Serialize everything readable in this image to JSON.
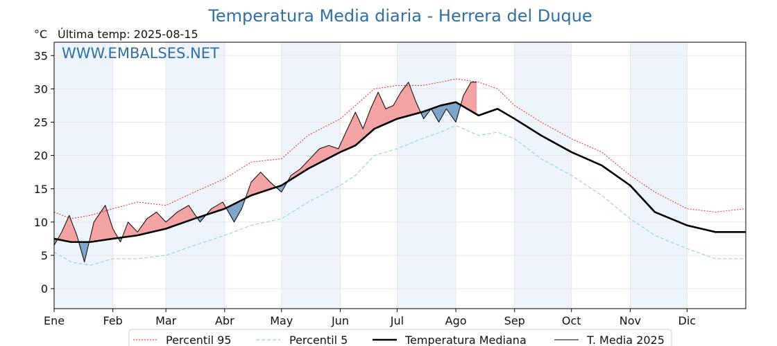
{
  "title": "Temperatura Media diaria - Herrera del Duque",
  "unit_label": "°C",
  "last_temp_label": "Última temp: 2025-08-15",
  "watermark": "WWW.EMBALSES.NET",
  "colors": {
    "title": "#2f6fa3",
    "watermark": "#2f6fa3",
    "p95": "#e8251d",
    "p5": "#9ccfdc",
    "median": "#000000",
    "current": "#000000",
    "above_fill": "#f4a3a5",
    "below_fill": "#7fa5c8",
    "band": "#eef4fb",
    "grid": "#e6e6e6"
  },
  "chart_data": {
    "type": "line",
    "xlim": [
      1,
      366
    ],
    "ylim": [
      -3,
      37
    ],
    "y_ticks": [
      0,
      5,
      10,
      15,
      20,
      25,
      30,
      35
    ],
    "x_ticks": [
      {
        "day": 1,
        "label": "Ene"
      },
      {
        "day": 32,
        "label": "Feb"
      },
      {
        "day": 60,
        "label": "Mar"
      },
      {
        "day": 91,
        "label": "Abr"
      },
      {
        "day": 121,
        "label": "May"
      },
      {
        "day": 152,
        "label": "Jun"
      },
      {
        "day": 182,
        "label": "Jul"
      },
      {
        "day": 213,
        "label": "Ago"
      },
      {
        "day": 244,
        "label": "Sep"
      },
      {
        "day": 274,
        "label": "Oct"
      },
      {
        "day": 305,
        "label": "Nov"
      },
      {
        "day": 335,
        "label": "Dic"
      }
    ],
    "shaded_months": [
      [
        1,
        32
      ],
      [
        60,
        91
      ],
      [
        121,
        152
      ],
      [
        182,
        213
      ],
      [
        244,
        274
      ],
      [
        305,
        335
      ]
    ],
    "legend": [
      "Percentil 95",
      "Percentil 5",
      "Temperatura Mediana",
      "T. Media 2025"
    ],
    "series": [
      {
        "name": "Percentil 95",
        "style": "dotted-red",
        "points": [
          [
            1,
            11.5
          ],
          [
            10,
            10.5
          ],
          [
            20,
            11
          ],
          [
            32,
            12
          ],
          [
            45,
            13
          ],
          [
            60,
            12.5
          ],
          [
            75,
            14.5
          ],
          [
            91,
            16.5
          ],
          [
            105,
            19
          ],
          [
            121,
            19.5
          ],
          [
            135,
            23
          ],
          [
            152,
            25.5
          ],
          [
            160,
            27.5
          ],
          [
            170,
            30
          ],
          [
            182,
            30.5
          ],
          [
            195,
            30.5
          ],
          [
            205,
            31
          ],
          [
            213,
            31.5
          ],
          [
            225,
            31
          ],
          [
            235,
            30
          ],
          [
            244,
            27.5
          ],
          [
            258,
            25
          ],
          [
            274,
            22.5
          ],
          [
            290,
            20.5
          ],
          [
            305,
            17
          ],
          [
            318,
            14.5
          ],
          [
            335,
            12
          ],
          [
            350,
            11.5
          ],
          [
            366,
            12
          ]
        ]
      },
      {
        "name": "Percentil 5",
        "style": "dashed-lightblue",
        "points": [
          [
            1,
            5.5
          ],
          [
            10,
            4
          ],
          [
            20,
            3.5
          ],
          [
            32,
            4.5
          ],
          [
            45,
            4.5
          ],
          [
            60,
            5
          ],
          [
            75,
            6.5
          ],
          [
            91,
            8
          ],
          [
            105,
            9.5
          ],
          [
            121,
            10.5
          ],
          [
            135,
            13
          ],
          [
            152,
            15.5
          ],
          [
            160,
            17
          ],
          [
            170,
            20
          ],
          [
            182,
            21
          ],
          [
            195,
            22.5
          ],
          [
            205,
            23.5
          ],
          [
            213,
            24.5
          ],
          [
            225,
            23
          ],
          [
            235,
            23.5
          ],
          [
            244,
            22.5
          ],
          [
            258,
            19.5
          ],
          [
            274,
            17
          ],
          [
            290,
            14
          ],
          [
            305,
            10.5
          ],
          [
            318,
            8
          ],
          [
            335,
            6
          ],
          [
            350,
            4.5
          ],
          [
            366,
            4.5
          ]
        ]
      },
      {
        "name": "Temperatura Mediana",
        "style": "solid-thick-black",
        "points": [
          [
            1,
            7.5
          ],
          [
            10,
            7
          ],
          [
            20,
            7
          ],
          [
            32,
            7.5
          ],
          [
            45,
            8
          ],
          [
            60,
            9
          ],
          [
            75,
            10.5
          ],
          [
            91,
            12
          ],
          [
            105,
            14
          ],
          [
            121,
            15.5
          ],
          [
            135,
            18
          ],
          [
            152,
            20.5
          ],
          [
            160,
            21.5
          ],
          [
            170,
            24
          ],
          [
            182,
            25.5
          ],
          [
            195,
            26.5
          ],
          [
            205,
            27.5
          ],
          [
            213,
            28
          ],
          [
            225,
            26
          ],
          [
            235,
            27
          ],
          [
            244,
            25.5
          ],
          [
            258,
            23
          ],
          [
            274,
            20.5
          ],
          [
            290,
            18.5
          ],
          [
            305,
            15.5
          ],
          [
            318,
            11.5
          ],
          [
            335,
            9.5
          ],
          [
            350,
            8.5
          ],
          [
            366,
            8.5
          ]
        ]
      },
      {
        "name": "T. Media 2025",
        "style": "solid-thin-black",
        "points": [
          [
            1,
            6.5
          ],
          [
            5,
            8.5
          ],
          [
            9,
            11
          ],
          [
            13,
            8
          ],
          [
            17,
            4
          ],
          [
            22,
            10
          ],
          [
            28,
            12.5
          ],
          [
            32,
            9
          ],
          [
            36,
            7
          ],
          [
            40,
            10
          ],
          [
            45,
            8.5
          ],
          [
            50,
            10.5
          ],
          [
            55,
            11.5
          ],
          [
            60,
            10
          ],
          [
            66,
            11.5
          ],
          [
            72,
            12.5
          ],
          [
            78,
            10
          ],
          [
            84,
            12
          ],
          [
            90,
            13
          ],
          [
            96,
            10
          ],
          [
            100,
            12
          ],
          [
            105,
            16
          ],
          [
            110,
            17.5
          ],
          [
            115,
            16
          ],
          [
            121,
            14.5
          ],
          [
            126,
            17
          ],
          [
            131,
            18
          ],
          [
            136,
            19.5
          ],
          [
            141,
            21
          ],
          [
            146,
            21.5
          ],
          [
            151,
            21
          ],
          [
            155,
            23.5
          ],
          [
            160,
            26.5
          ],
          [
            164,
            24
          ],
          [
            168,
            27
          ],
          [
            172,
            29.5
          ],
          [
            176,
            27
          ],
          [
            180,
            27.5
          ],
          [
            184,
            29.5
          ],
          [
            188,
            31
          ],
          [
            192,
            28
          ],
          [
            196,
            25.5
          ],
          [
            200,
            27
          ],
          [
            204,
            25
          ],
          [
            208,
            27
          ],
          [
            213,
            25
          ],
          [
            217,
            29
          ],
          [
            221,
            31
          ],
          [
            224,
            31
          ]
        ]
      }
    ]
  }
}
